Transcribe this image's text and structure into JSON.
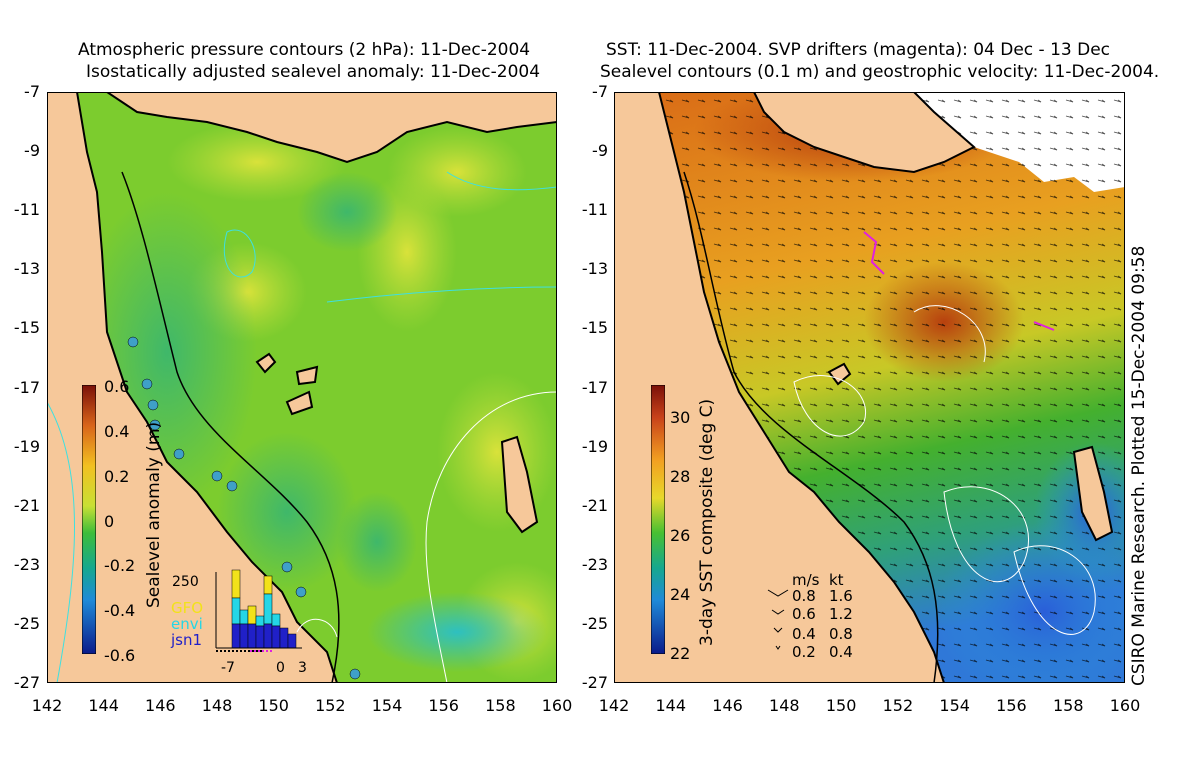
{
  "left_panel": {
    "title_line1": "Atmospheric pressure contours (2 hPa): 11-Dec-2004",
    "title_line2": "Isostatically adjusted sealevel anomaly: 11-Dec-2004",
    "y_ticks": [
      "-7",
      "-9",
      "-11",
      "-13",
      "-15",
      "-17",
      "-19",
      "-21",
      "-23",
      "-25",
      "-27"
    ],
    "x_ticks": [
      "142",
      "144",
      "146",
      "148",
      "150",
      "152",
      "154",
      "156",
      "158",
      "160"
    ],
    "colorbar": {
      "label": "Sealevel anomaly (m)",
      "ticks": [
        "0.6",
        "0.4",
        "0.2",
        "0",
        "-0.2",
        "-0.4",
        "-0.6"
      ],
      "range": [
        -0.6,
        0.6
      ]
    },
    "inset": {
      "y_label": "250",
      "x_ticks": [
        "-7",
        "0",
        "3"
      ],
      "legend": [
        {
          "name": "GFO",
          "color": "#f2e21a"
        },
        {
          "name": "envi",
          "color": "#24d6e6"
        },
        {
          "name": "jsn1",
          "color": "#2020c8"
        }
      ]
    }
  },
  "right_panel": {
    "title_line1": "SST: 11-Dec-2004. SVP drifters (magenta): 04 Dec - 13 Dec",
    "title_line2": "Sealevel contours (0.1 m) and geostrophic velocity: 11-Dec-2004.",
    "y_ticks": [
      "-7",
      "-9",
      "-11",
      "-13",
      "-15",
      "-17",
      "-19",
      "-21",
      "-23",
      "-25",
      "-27"
    ],
    "x_ticks": [
      "142",
      "144",
      "146",
      "148",
      "150",
      "152",
      "154",
      "156",
      "158",
      "160"
    ],
    "colorbar": {
      "label": "3-day SST composite (deg C)",
      "ticks": [
        "30",
        "28",
        "26",
        "24",
        "22"
      ],
      "range": [
        22,
        31
      ]
    },
    "velocity_legend": {
      "header_ms": "m/s",
      "header_kt": "kt",
      "rows": [
        {
          "ms": "0.8",
          "kt": "1.6"
        },
        {
          "ms": "0.6",
          "kt": "1.2"
        },
        {
          "ms": "0.4",
          "kt": "0.8"
        },
        {
          "ms": "0.2",
          "kt": "0.4"
        }
      ]
    }
  },
  "credit": "CSIRO Marine Research. Plotted 15-Dec-2004 09:58",
  "colors": {
    "land": "#f6c89a",
    "sla_mid": "#7ccc2e",
    "sst_warm": "#e8891a",
    "sst_cool": "#3c8fe0"
  }
}
